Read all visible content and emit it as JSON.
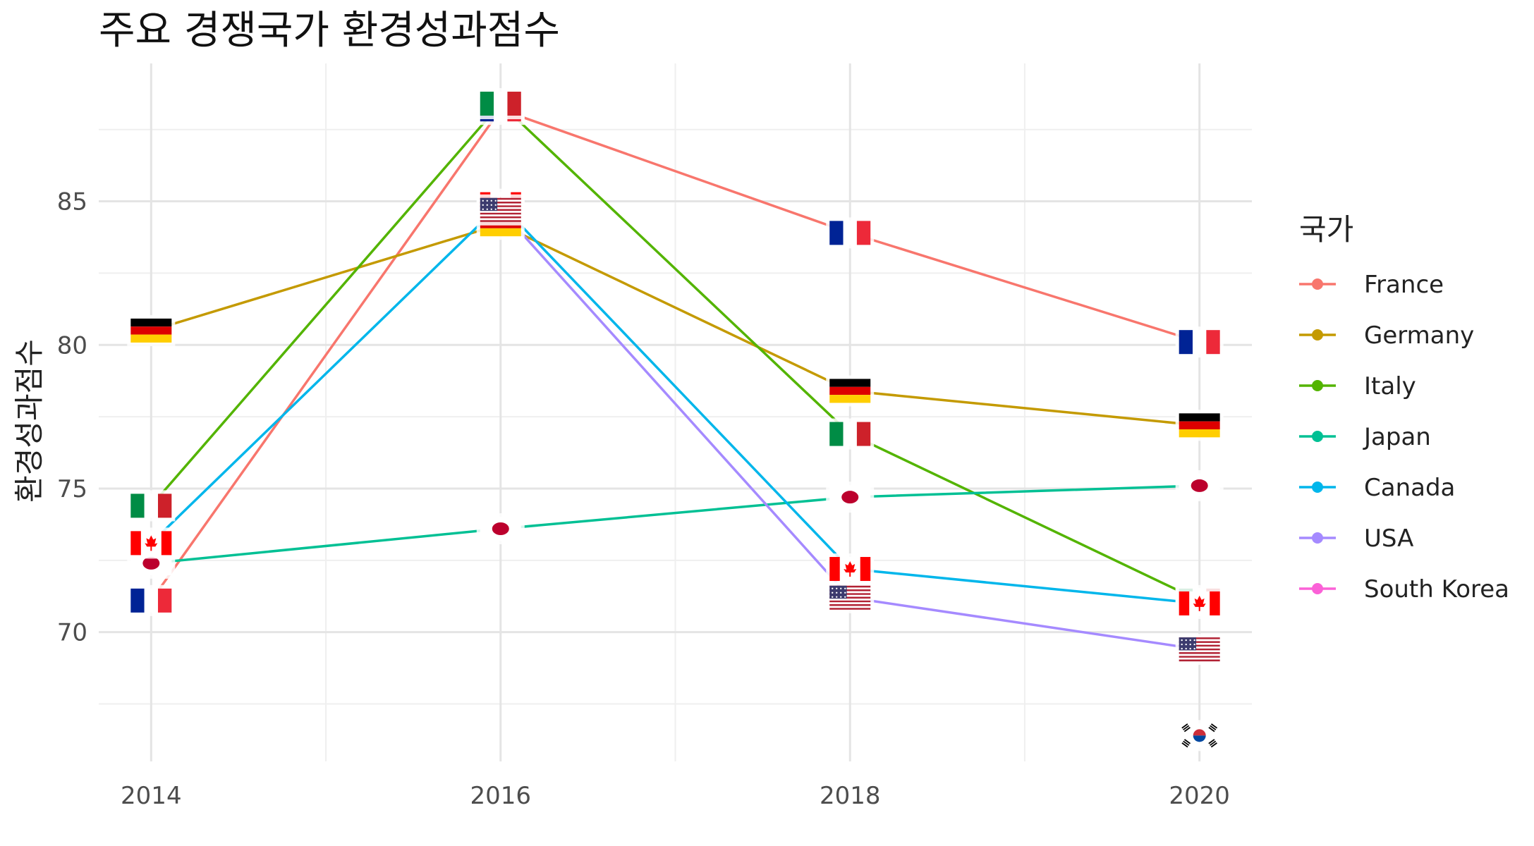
{
  "chart_data": {
    "type": "line",
    "title": "주요 경쟁국가 환경성과점수",
    "xlabel": "",
    "ylabel": "환경성과점수",
    "x": [
      2014,
      2016,
      2018,
      2020
    ],
    "x_ticks": [
      "2014",
      "2016",
      "2018",
      "2020"
    ],
    "y_ticks": [
      "70",
      "75",
      "80",
      "85"
    ],
    "xlim": [
      2013.7,
      2020.3
    ],
    "ylim": [
      65.5,
      89.8
    ],
    "grid": true,
    "legend": {
      "title": "국가",
      "position": "right"
    },
    "series": [
      {
        "name": "France",
        "color": "#F8766D",
        "values": [
          71.1,
          88.2,
          83.9,
          80.1
        ],
        "marker": "flag-france"
      },
      {
        "name": "Germany",
        "color": "#C49A00",
        "values": [
          80.5,
          84.2,
          78.4,
          77.2
        ],
        "marker": "flag-germany"
      },
      {
        "name": "Italy",
        "color": "#53B400",
        "values": [
          74.4,
          88.4,
          76.9,
          71.1
        ],
        "marker": "flag-italy"
      },
      {
        "name": "Japan",
        "color": "#00C094",
        "values": [
          72.4,
          73.6,
          74.7,
          75.1
        ],
        "marker": "flag-japan"
      },
      {
        "name": "Canada",
        "color": "#00B6EB",
        "values": [
          73.1,
          84.9,
          72.2,
          71.0
        ],
        "marker": "flag-canada"
      },
      {
        "name": "USA",
        "color": "#A58AFF",
        "values": [
          null,
          84.7,
          71.2,
          69.4
        ],
        "marker": "flag-usa"
      },
      {
        "name": "South Korea",
        "color": "#FB61D7",
        "values": [
          null,
          null,
          null,
          66.4
        ],
        "marker": "flag-korea"
      }
    ]
  }
}
